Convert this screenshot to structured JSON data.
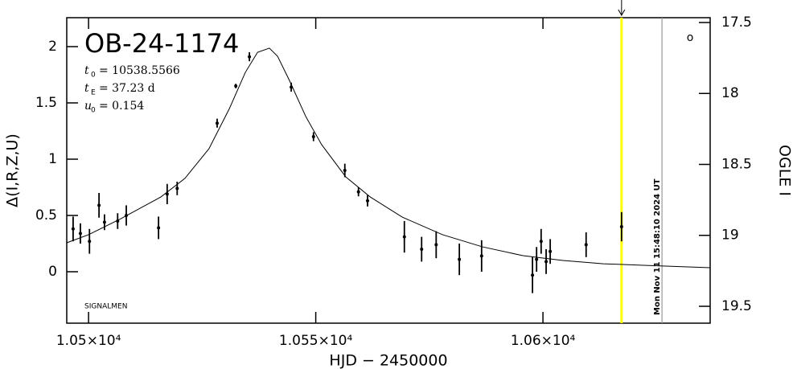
{
  "chart_data": {
    "type": "scatter",
    "title": "OB-24-1174",
    "parameters": [
      {
        "symbol": "t",
        "subscript": "0",
        "text": "= 10538.5566"
      },
      {
        "symbol": "t",
        "subscript": "E",
        "text": "= 37.23  d"
      },
      {
        "symbol": "u",
        "subscript": "0",
        "text": "= 0.154"
      }
    ],
    "note": "SIGNALMEN",
    "symbol": "o",
    "x_label": "HJD − 2450000",
    "y_label": "Δ(I,R,Z,U)",
    "y2_label": "OGLE I",
    "xlim": [
      10495.2,
      10636.8
    ],
    "xticks": [
      {
        "value": 10500,
        "label": "1.05×10⁴"
      },
      {
        "value": 10550,
        "label": "1.055×10⁴"
      },
      {
        "value": 10600,
        "label": "1.06×10⁴"
      }
    ],
    "ylim": [
      -0.457,
      2.257
    ],
    "yticks": [
      0,
      0.5,
      1,
      1.5,
      2
    ],
    "y2lim": [
      17.466,
      19.619
    ],
    "y2ticks": [
      17.5,
      18,
      18.5,
      19,
      19.5
    ],
    "series": [
      {
        "color": "#000000",
        "x": [
          10496.6,
          10498.2,
          10500.2,
          10502.3,
          10503.5,
          10506.4,
          10508.3,
          10515.4,
          10517.3,
          10519.5,
          10528.3,
          10532.4,
          10535.4,
          10544.6,
          10549.5,
          10556.4,
          10559.4,
          10561.4,
          10569.5,
          10573.3,
          10576.5,
          10581.6,
          10586.5,
          10597.7,
          10598.6,
          10599.6,
          10600.7,
          10601.6,
          10609.5,
          10617.3
        ],
        "values": [
          0.38,
          0.34,
          0.27,
          0.59,
          0.44,
          0.45,
          0.5,
          0.39,
          0.69,
          0.74,
          1.32,
          1.65,
          1.91,
          1.64,
          1.2,
          0.9,
          0.71,
          0.63,
          0.31,
          0.2,
          0.24,
          0.11,
          0.14,
          -0.03,
          0.11,
          0.27,
          0.09,
          0.18,
          0.24,
          0.4
        ],
        "errors": [
          0.11,
          0.09,
          0.11,
          0.11,
          0.07,
          0.07,
          0.09,
          0.1,
          0.09,
          0.06,
          0.04,
          0.02,
          0.04,
          0.04,
          0.04,
          0.06,
          0.04,
          0.05,
          0.14,
          0.11,
          0.12,
          0.14,
          0.14,
          0.16,
          0.11,
          0.11,
          0.11,
          0.11,
          0.11,
          0.13
        ]
      }
    ],
    "model": {
      "color": "#000000",
      "x": [
        10495.2,
        10500.0,
        10507.1,
        10515.9,
        10521.2,
        10526.5,
        10531.0,
        10534.5,
        10537.2,
        10539.8,
        10541.6,
        10544.2,
        10547.8,
        10551.3,
        10556.6,
        10562.0,
        10569.0,
        10577.9,
        10586.7,
        10595.6,
        10604.4,
        10613.3,
        10622.1,
        10636.8
      ],
      "values": [
        0.257,
        0.329,
        0.471,
        0.664,
        0.829,
        1.093,
        1.45,
        1.771,
        1.95,
        1.986,
        1.914,
        1.7,
        1.379,
        1.129,
        0.843,
        0.664,
        0.486,
        0.329,
        0.221,
        0.143,
        0.1,
        0.071,
        0.057,
        0.036
      ]
    },
    "markers": [
      {
        "x": 10617.3,
        "color": "#ffff00"
      },
      {
        "x": 10626.2,
        "color": "#999999",
        "label": "Mon Nov 11 15:48:10 2024 UT"
      }
    ]
  }
}
